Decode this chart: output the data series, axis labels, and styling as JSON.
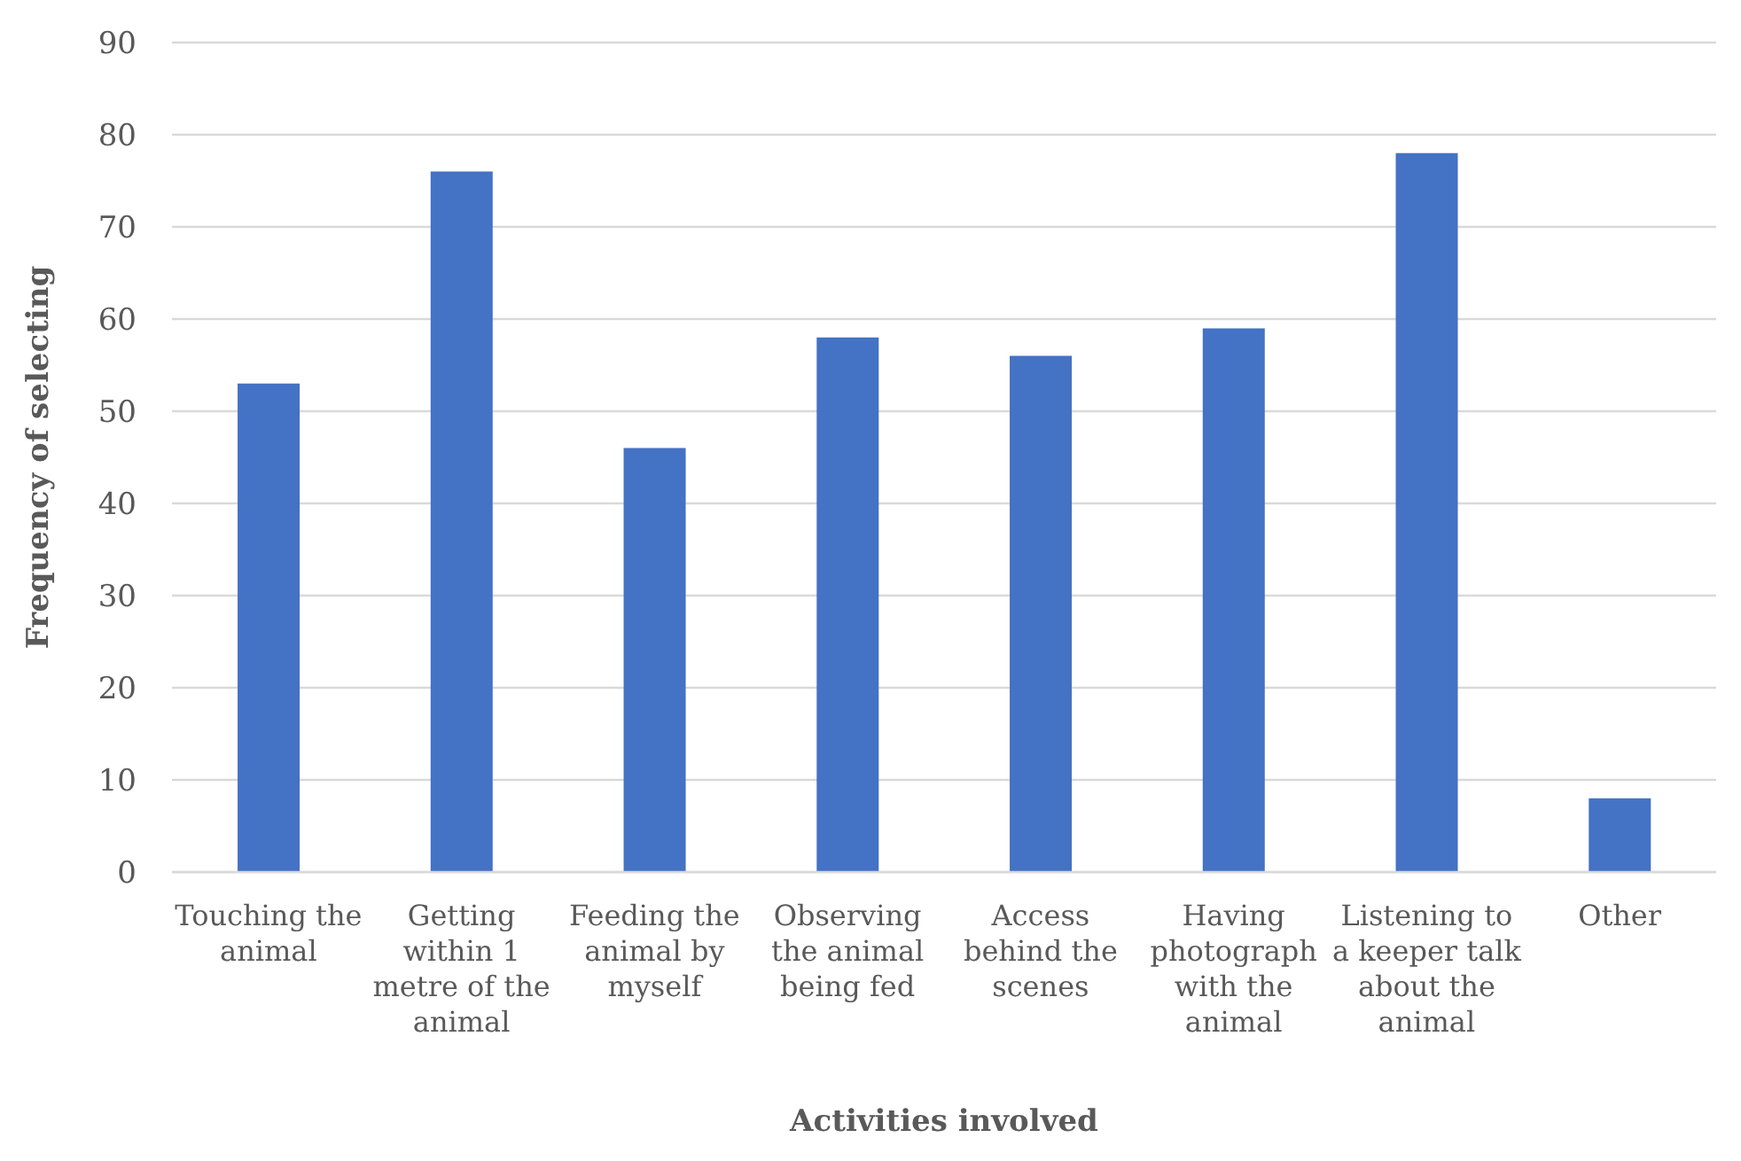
{
  "chart_data": {
    "type": "bar",
    "xlabel": "Activities involved",
    "ylabel": "Frequency of selecting",
    "categories": [
      "Touching the animal",
      "Getting within 1 metre of the animal",
      "Feeding the animal by myself",
      "Observing the animal being fed",
      "Access behind the scenes",
      "Having photograph with the animal",
      "Listening to a keeper talk about the animal",
      "Other"
    ],
    "values": [
      53,
      76,
      46,
      58,
      56,
      59,
      78,
      8
    ],
    "color": "#4472c4",
    "ylim": [
      0,
      90
    ],
    "yticks": [
      0,
      10,
      20,
      30,
      40,
      50,
      60,
      70,
      80,
      90
    ],
    "grid": "y"
  }
}
